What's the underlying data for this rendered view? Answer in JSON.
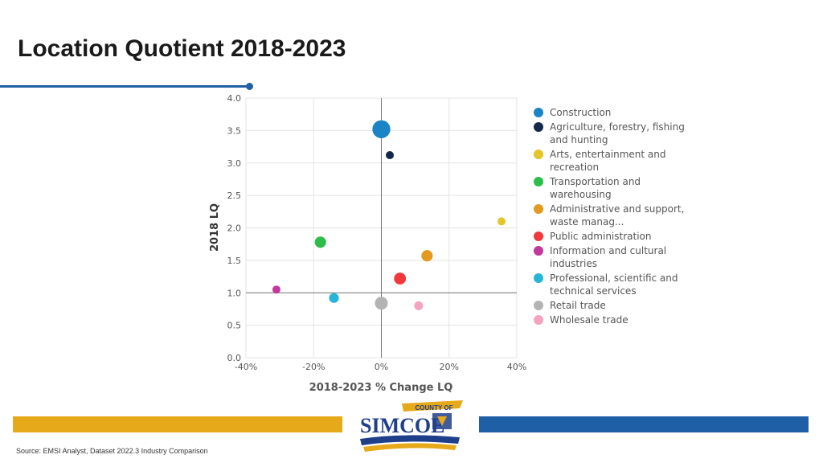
{
  "slide": {
    "title": "Location Quotient 2018-2023",
    "source": "Source: EMSI Analyst, Dataset 2022.3 Industry Comparison"
  },
  "logo": {
    "small_text": "COUNTY OF",
    "big_text": "SIMCOE",
    "colors": {
      "navy": "#1f3f8a",
      "gold": "#e6a91a"
    }
  },
  "colors": {
    "accent_blue": "#1f5fa6",
    "accent_gold": "#e6a91a"
  },
  "chart_data": {
    "type": "scatter",
    "bubble": true,
    "xlabel": "2018-2023 % Change LQ",
    "ylabel": "2018 LQ",
    "xlim": [
      -40,
      40
    ],
    "ylim": [
      0,
      4.0
    ],
    "x_unit": "%",
    "x_ticks": [
      "-40%",
      "-20%",
      "0%",
      "20%",
      "40%"
    ],
    "y_ticks": [
      "0.0",
      "0.5",
      "1.0",
      "1.5",
      "2.0",
      "2.5",
      "3.0",
      "3.5",
      "4.0"
    ],
    "grid": true,
    "legend_position": "right",
    "series": [
      {
        "name": "Construction",
        "x": 0,
        "y": 3.52,
        "size": 5,
        "color": "#1a84c7"
      },
      {
        "name": "Agriculture, forestry, fishing and hunting",
        "x": 2.5,
        "y": 3.12,
        "size": 1,
        "color": "#14284b"
      },
      {
        "name": "Arts, entertainment and recreation",
        "x": 35.5,
        "y": 2.1,
        "size": 1,
        "color": "#e4c62a"
      },
      {
        "name": "Transportation and warehousing",
        "x": -18,
        "y": 1.78,
        "size": 2,
        "color": "#2dbe4a"
      },
      {
        "name": "Administrative and support, waste manag...",
        "x": 13.5,
        "y": 1.57,
        "size": 2,
        "color": "#e39a1f"
      },
      {
        "name": "Public administration",
        "x": 5.5,
        "y": 1.22,
        "size": 2.2,
        "color": "#f2383a"
      },
      {
        "name": "Information and cultural industries",
        "x": -31,
        "y": 1.05,
        "size": 1,
        "color": "#c0399b"
      },
      {
        "name": "Professional, scientific and technical services",
        "x": -14,
        "y": 0.92,
        "size": 1.5,
        "color": "#27b5d7"
      },
      {
        "name": "Retail trade",
        "x": 0,
        "y": 0.84,
        "size": 2.6,
        "color": "#b3b3b3"
      },
      {
        "name": "Wholesale trade",
        "x": 11,
        "y": 0.8,
        "size": 1.2,
        "color": "#f4a3c0"
      }
    ]
  }
}
